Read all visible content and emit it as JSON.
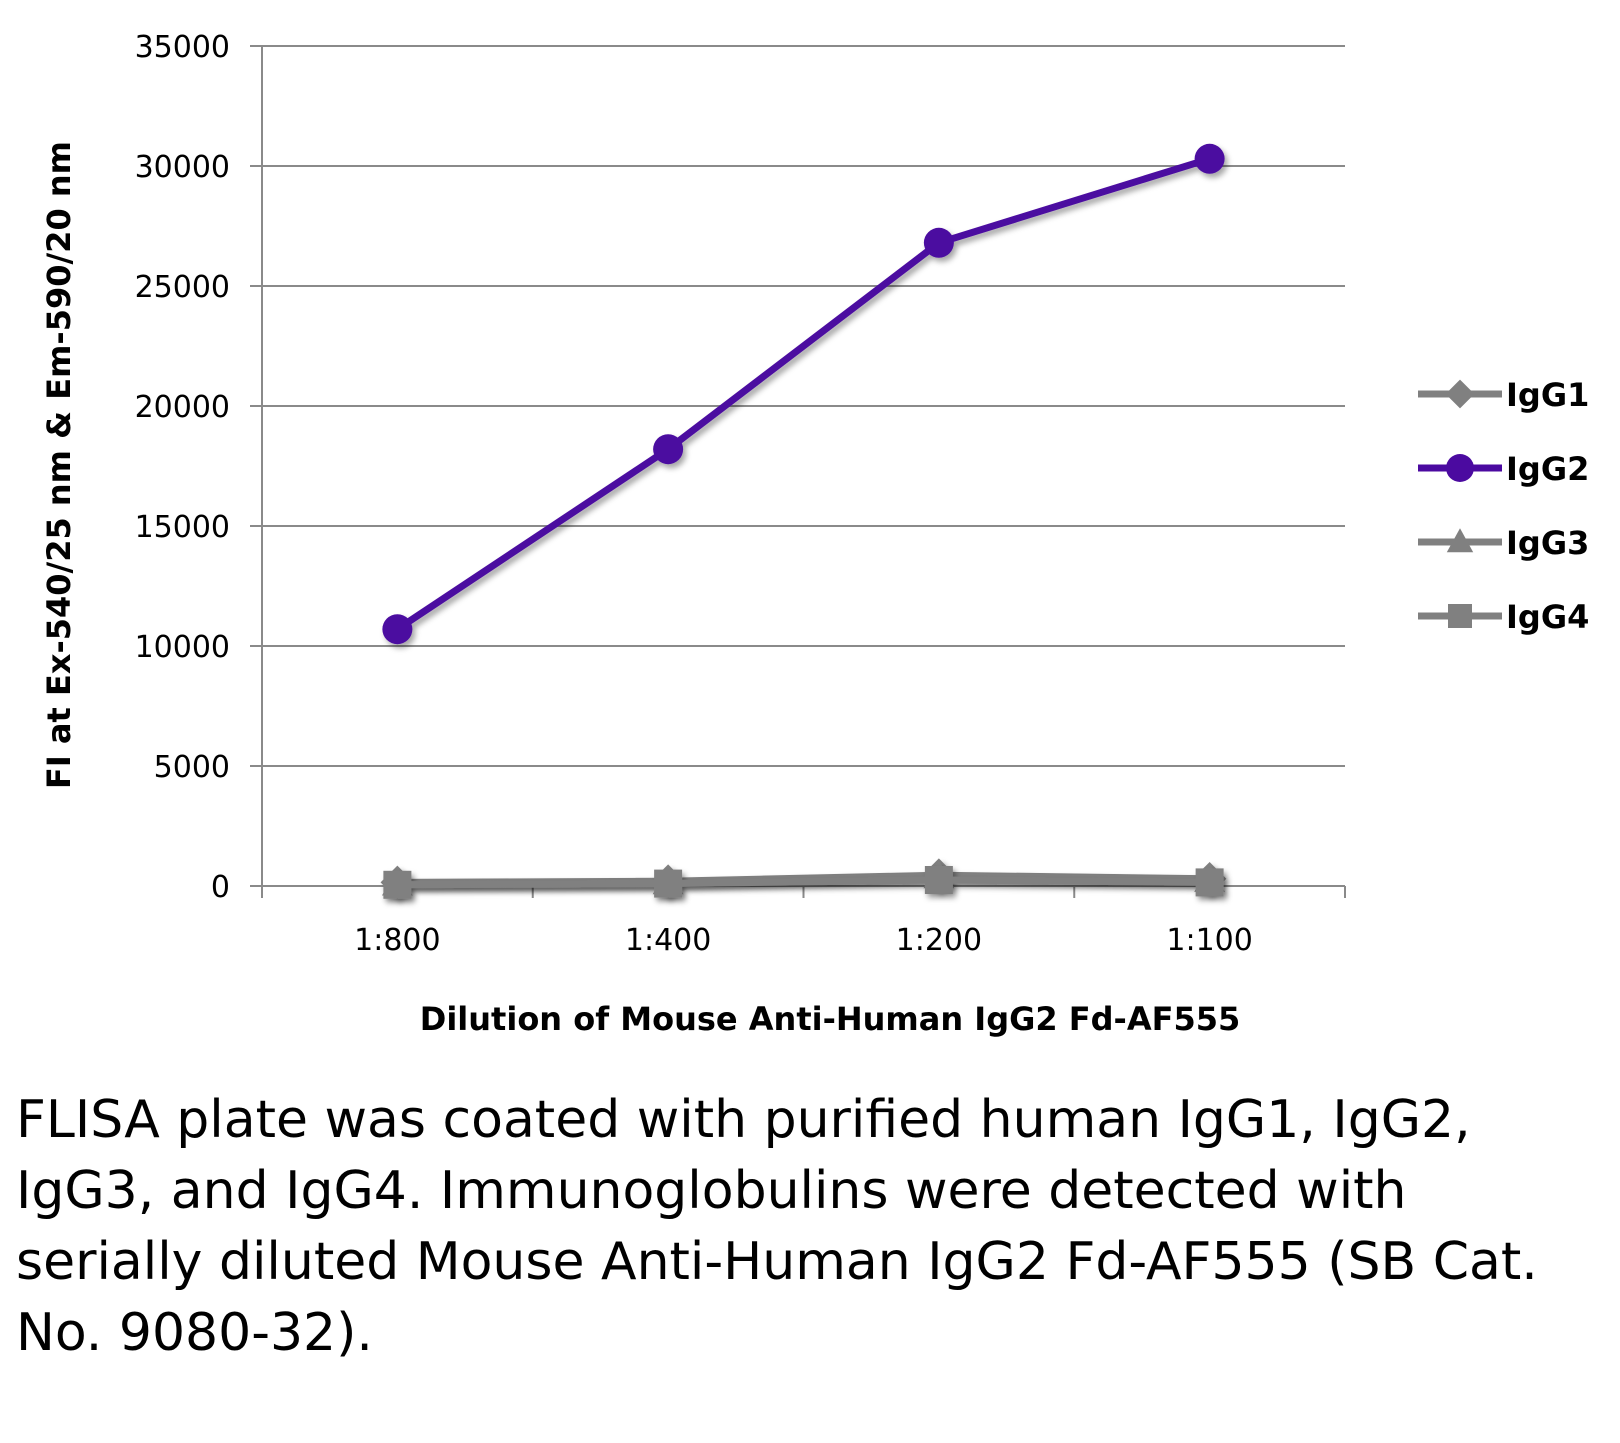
{
  "chart_data": {
    "type": "line",
    "categories": [
      "1:800",
      "1:400",
      "1:200",
      "1:100"
    ],
    "series": [
      {
        "name": "IgG1",
        "marker": "diamond",
        "color": "#808080",
        "values": [
          150,
          200,
          450,
          300
        ]
      },
      {
        "name": "IgG2",
        "marker": "circle",
        "color": "#4B0AA0",
        "values": [
          10700,
          18200,
          26800,
          30300
        ]
      },
      {
        "name": "IgG3",
        "marker": "triangle",
        "color": "#808080",
        "values": [
          100,
          150,
          400,
          250
        ]
      },
      {
        "name": "IgG4",
        "marker": "square",
        "color": "#808080",
        "values": [
          50,
          100,
          250,
          150
        ]
      }
    ],
    "ylim": [
      0,
      35000
    ],
    "yticks": [
      "0",
      "5000",
      "10000",
      "15000",
      "20000",
      "25000",
      "30000",
      "35000"
    ],
    "ylabel": "FI at Ex-540/25 nm & Em-590/20 nm",
    "xlabel": "Dilution of Mouse Anti-Human IgG2 Fd-AF555",
    "grid": true,
    "legend_position": "right"
  },
  "caption": "FLISA plate was coated with purified human IgG1, IgG2, IgG3, and IgG4.  Immunoglobulins were detected with serially diluted Mouse Anti-Human IgG2 Fd-AF555 (SB Cat. No. 9080-32)."
}
